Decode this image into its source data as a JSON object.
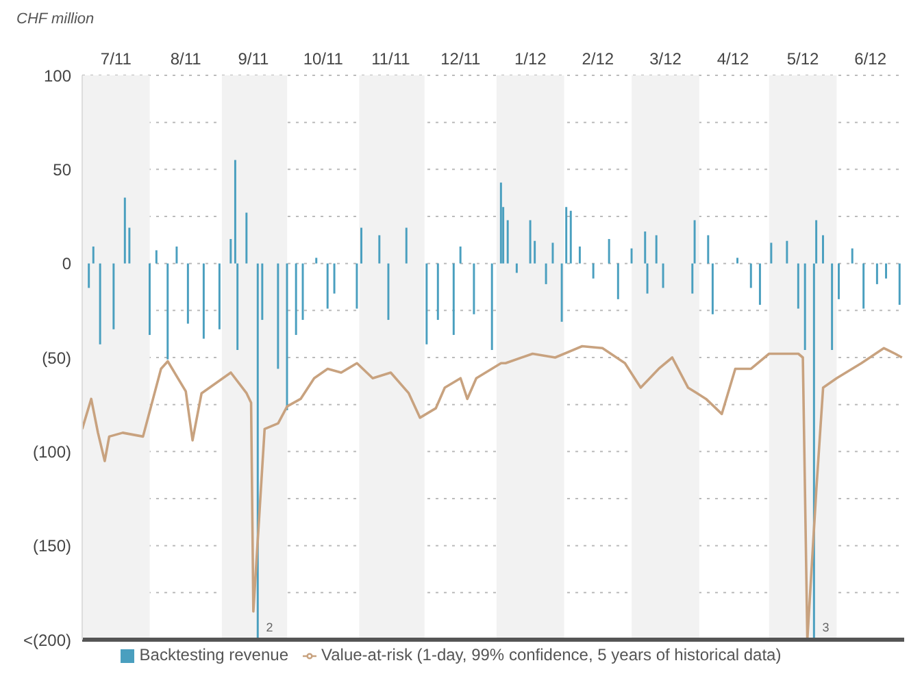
{
  "chart_data": {
    "type": "bar",
    "ylabel": "CHF million",
    "xlim": [
      "2011-07-01",
      "2012-06-30"
    ],
    "xticks": [
      {
        "value": "2011-07-16",
        "label": "7/11"
      },
      {
        "value": "2011-08-16",
        "label": "8/11"
      },
      {
        "value": "2011-09-15",
        "label": "9/11"
      },
      {
        "value": "2011-10-16",
        "label": "10/11"
      },
      {
        "value": "2011-11-15",
        "label": "11/11"
      },
      {
        "value": "2011-12-16",
        "label": "12/11"
      },
      {
        "value": "2012-01-16",
        "label": "1/12"
      },
      {
        "value": "2012-02-15",
        "label": "2/12"
      },
      {
        "value": "2012-03-16",
        "label": "3/12"
      },
      {
        "value": "2012-04-15",
        "label": "4/12"
      },
      {
        "value": "2012-05-16",
        "label": "5/12"
      },
      {
        "value": "2012-06-15",
        "label": "6/12"
      }
    ],
    "ylim": [
      -200,
      100
    ],
    "yticks": [
      100,
      {
        "value": 75,
        "label": null
      },
      50,
      {
        "value": 25,
        "label": null
      },
      0,
      {
        "value": -25,
        "label": null
      },
      {
        "value": -50,
        "label": "(50)"
      },
      {
        "value": -75,
        "label": null
      },
      {
        "value": -100,
        "label": "(100)"
      },
      {
        "value": -125,
        "label": null
      },
      {
        "value": -150,
        "label": "(150)"
      },
      {
        "value": -175,
        "label": null
      },
      {
        "value": -200,
        "label": "<(200)"
      }
    ],
    "grid": "y",
    "legend": "bottom",
    "marker": "none",
    "bands": [
      {
        "axis": "x",
        "from": "2011-07-01",
        "to": "2011-07-31",
        "color": "#f2f2f2"
      },
      {
        "axis": "x",
        "from": "2011-09-01",
        "to": "2011-09-30",
        "color": "#f2f2f2"
      },
      {
        "axis": "x",
        "from": "2011-11-01",
        "to": "2011-11-30",
        "color": "#f2f2f2"
      },
      {
        "axis": "x",
        "from": "2012-01-01",
        "to": "2012-01-31",
        "color": "#f2f2f2"
      },
      {
        "axis": "x",
        "from": "2012-03-01",
        "to": "2012-03-31",
        "color": "#f2f2f2"
      },
      {
        "axis": "x",
        "from": "2012-05-01",
        "to": "2012-05-31",
        "color": "#f2f2f2"
      }
    ],
    "annotations": [
      {
        "text": "2",
        "x": "2011-09-17",
        "y": -200
      },
      {
        "text": "3",
        "x": "2012-05-21",
        "y": -200
      }
    ],
    "series": [
      {
        "name": "Backtesting revenue",
        "color": "#4a9fbf",
        "x": [
          "2011-07-04",
          "2011-07-06",
          "2011-07-09",
          "2011-07-15",
          "2011-07-20",
          "2011-07-22",
          "2011-07-31",
          "2011-08-03",
          "2011-08-08",
          "2011-08-12",
          "2011-08-17",
          "2011-08-24",
          "2011-08-31",
          "2011-09-05",
          "2011-09-07",
          "2011-09-08",
          "2011-09-12",
          "2011-09-17",
          "2011-09-19",
          "2011-09-26",
          "2011-09-30",
          "2011-10-04",
          "2011-10-07",
          "2011-10-13",
          "2011-10-18",
          "2011-10-21",
          "2011-10-31",
          "2011-11-02",
          "2011-11-10",
          "2011-11-14",
          "2011-11-22",
          "2011-12-01",
          "2011-12-06",
          "2011-12-13",
          "2011-12-16",
          "2011-12-22",
          "2011-12-30",
          "2012-01-03",
          "2012-01-04",
          "2012-01-06",
          "2012-01-10",
          "2012-01-16",
          "2012-01-18",
          "2012-01-23",
          "2012-01-26",
          "2012-01-30",
          "2012-02-01",
          "2012-02-03",
          "2012-02-07",
          "2012-02-13",
          "2012-02-20",
          "2012-02-24",
          "2012-03-01",
          "2012-03-07",
          "2012-03-08",
          "2012-03-12",
          "2012-03-15",
          "2012-03-28",
          "2012-03-29",
          "2012-04-04",
          "2012-04-06",
          "2012-04-17",
          "2012-04-23",
          "2012-04-27",
          "2012-05-02",
          "2012-05-09",
          "2012-05-14",
          "2012-05-17",
          "2012-05-21",
          "2012-05-22",
          "2012-05-25",
          "2012-05-29",
          "2012-06-01",
          "2012-06-07",
          "2012-06-12",
          "2012-06-18",
          "2012-06-22",
          "2012-06-28"
        ],
        "values": [
          -13,
          9,
          -43,
          -35,
          35,
          19,
          -38,
          7,
          -51,
          9,
          -32,
          -40,
          -35,
          13,
          55,
          -46,
          27,
          -200,
          -30,
          -56,
          -78,
          -38,
          -30,
          3,
          -24,
          -16,
          -24,
          19,
          15,
          -30,
          19,
          -43,
          -30,
          -38,
          9,
          -27,
          -46,
          43,
          30,
          23,
          -5,
          23,
          12,
          -11,
          11,
          -31,
          30,
          28,
          9,
          -8,
          13,
          -19,
          8,
          17,
          -16,
          15,
          -13,
          -16,
          23,
          15,
          -27,
          3,
          -13,
          -22,
          11,
          12,
          -24,
          -46,
          -200,
          23,
          15,
          -46,
          -19,
          8,
          -24,
          -11,
          -8,
          -22
        ]
      },
      {
        "name": "Value-at-risk (1-day, 99% confidence, 5 years of historical data)",
        "type": "line",
        "color": "#c8a27f",
        "x": [
          "2011-07-01",
          "2011-07-05",
          "2011-07-08",
          "2011-07-11",
          "2011-07-13",
          "2011-07-19",
          "2011-07-28",
          "2011-08-05",
          "2011-08-08",
          "2011-08-16",
          "2011-08-19",
          "2011-08-23",
          "2011-09-05",
          "2011-09-12",
          "2011-09-14",
          "2011-09-15",
          "2011-09-20",
          "2011-09-26",
          "2011-09-30",
          "2011-10-06",
          "2011-10-12",
          "2011-10-18",
          "2011-10-24",
          "2011-10-31",
          "2011-11-07",
          "2011-11-15",
          "2011-11-23",
          "2011-11-28",
          "2011-12-05",
          "2011-12-09",
          "2011-12-16",
          "2011-12-19",
          "2011-12-23",
          "2012-01-03",
          "2012-01-05",
          "2012-01-17",
          "2012-01-27",
          "2012-02-08",
          "2012-02-17",
          "2012-02-27",
          "2012-03-05",
          "2012-03-13",
          "2012-03-19",
          "2012-03-26",
          "2012-04-03",
          "2012-04-10",
          "2012-04-16",
          "2012-04-23",
          "2012-05-01",
          "2012-05-14",
          "2012-05-16",
          "2012-05-18",
          "2012-05-22",
          "2012-05-25",
          "2012-05-31",
          "2012-06-11",
          "2012-06-21",
          "2012-06-26",
          "2012-06-29"
        ],
        "values": [
          -88,
          -72,
          -90,
          -105,
          -92,
          -90,
          -92,
          -56,
          -52,
          -68,
          -94,
          -69,
          -58,
          -69,
          -74,
          -185,
          -88,
          -85,
          -76,
          -72,
          -61,
          -56,
          -58,
          -53,
          -61,
          -58,
          -69,
          -82,
          -77,
          -66,
          -61,
          -72,
          -61,
          -53,
          -53,
          -48,
          -50,
          -44,
          -45,
          -53,
          -66,
          -56,
          -50,
          -66,
          -72,
          -80,
          -56,
          -56,
          -48,
          -48,
          -50,
          -200,
          -120,
          -66,
          -61,
          -53,
          -45,
          -48,
          -50
        ]
      }
    ]
  }
}
